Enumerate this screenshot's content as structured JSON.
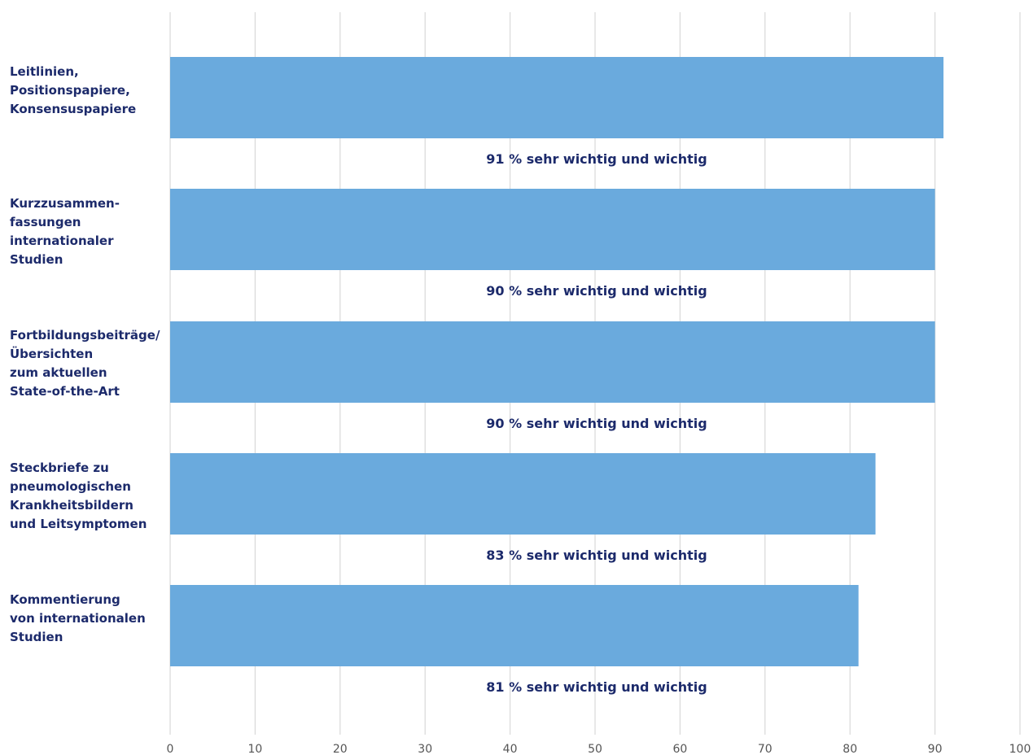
{
  "chart_data": {
    "type": "bar",
    "orientation": "horizontal",
    "categories": [
      "Leitlinien,\nPositionspapiere,\nKonsensuspapiere",
      "Kurzzusammen-\nfassungen\ninternationaler\nStudien",
      "Fortbildungsbeiträge/\nÜbersichten\nzum aktuellen\nState-of-the-Art",
      "Steckbriefe zu\npneumologischen\nKrankheitsbildern\nund Leitsymptomen",
      "Kommentierung\nvon internationalen\nStudien"
    ],
    "values": [
      91,
      90,
      90,
      83,
      81
    ],
    "data_labels": [
      "91 % sehr wichtig und wichtig",
      "90 % sehr wichtig und wichtig",
      "90 % sehr wichtig und wichtig",
      "83 % sehr wichtig und wichtig",
      "81 % sehr wichtig und wichtig"
    ],
    "xlim": [
      0,
      100
    ],
    "xticks": [
      "0",
      "10",
      "20",
      "30",
      "40",
      "50",
      "60",
      "70",
      "80",
      "90",
      "100"
    ],
    "grid": true,
    "colors": {
      "bar": "#6aaadd",
      "label_text": "#1c2a6b",
      "grid": "#d9d9d9",
      "tick_text": "#555555"
    }
  }
}
